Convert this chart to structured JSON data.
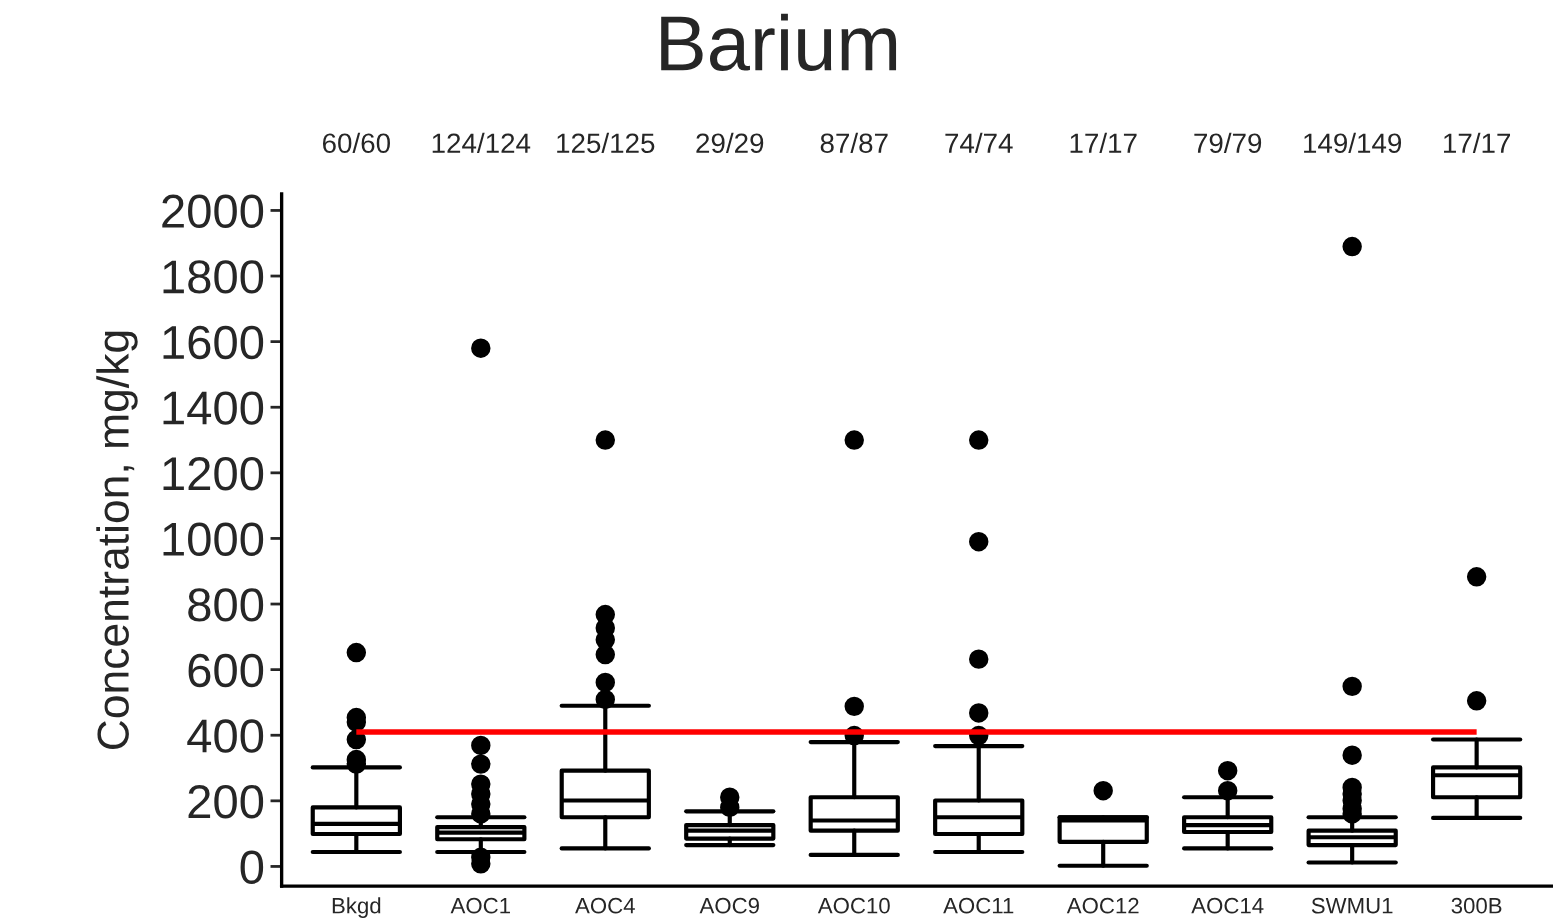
{
  "chart_data": {
    "type": "box",
    "title": "Barium",
    "ylabel": "Concentration, mg/kg",
    "categories": [
      "Bkgd",
      "AOC1",
      "AOC4",
      "AOC9",
      "AOC10",
      "AOC11",
      "AOC12",
      "AOC14",
      "SWMU1",
      "300B"
    ],
    "annotations": [
      "60/60",
      "124/124",
      "125/125",
      "29/29",
      "87/87",
      "74/74",
      "17/17",
      "79/79",
      "149/149",
      "17/17"
    ],
    "boxes": [
      {
        "low": 44,
        "q1": 99,
        "median": 130,
        "q3": 180,
        "high": 302,
        "outliers": [
          652,
          454,
          440,
          387,
          326,
          312
        ]
      },
      {
        "low": 44,
        "q1": 83,
        "median": 103,
        "q3": 120,
        "high": 150,
        "outliers": [
          1580,
          369,
          312,
          251,
          221,
          190,
          160,
          28,
          8
        ]
      },
      {
        "low": 55,
        "q1": 150,
        "median": 201,
        "q3": 292,
        "high": 490,
        "outliers": [
          1300,
          768,
          727,
          691,
          646,
          561,
          509
        ]
      },
      {
        "low": 65,
        "q1": 85,
        "median": 109,
        "q3": 126,
        "high": 168,
        "outliers": [
          211,
          180
        ]
      },
      {
        "low": 35,
        "q1": 109,
        "median": 140,
        "q3": 211,
        "high": 379,
        "outliers": [
          1300,
          488,
          399
        ]
      },
      {
        "low": 44,
        "q1": 99,
        "median": 150,
        "q3": 201,
        "high": 367,
        "outliers": [
          1300,
          990,
          632,
          468,
          399
        ]
      },
      {
        "low": 2,
        "q1": 75,
        "median": 140,
        "q3": 150,
        "high": 150,
        "outliers": [
          231
        ]
      },
      {
        "low": 55,
        "q1": 105,
        "median": 126,
        "q3": 150,
        "high": 211,
        "outliers": [
          292,
          231
        ]
      },
      {
        "low": 12,
        "q1": 65,
        "median": 89,
        "q3": 109,
        "high": 150,
        "outliers": [
          1890,
          549,
          339,
          241,
          221,
          201,
          176,
          160
        ]
      },
      {
        "low": 148,
        "q1": 211,
        "median": 278,
        "q3": 302,
        "high": 387,
        "outliers": [
          883,
          505
        ]
      }
    ],
    "ref_lines": [
      {
        "axis": "y",
        "value": 410,
        "color": "#ff0000"
      }
    ],
    "ylim": [
      -60,
      2050
    ],
    "yticks": [
      0,
      200,
      400,
      600,
      800,
      1000,
      1200,
      1400,
      1600,
      1800,
      2000
    ],
    "grid": false,
    "legend": false
  }
}
